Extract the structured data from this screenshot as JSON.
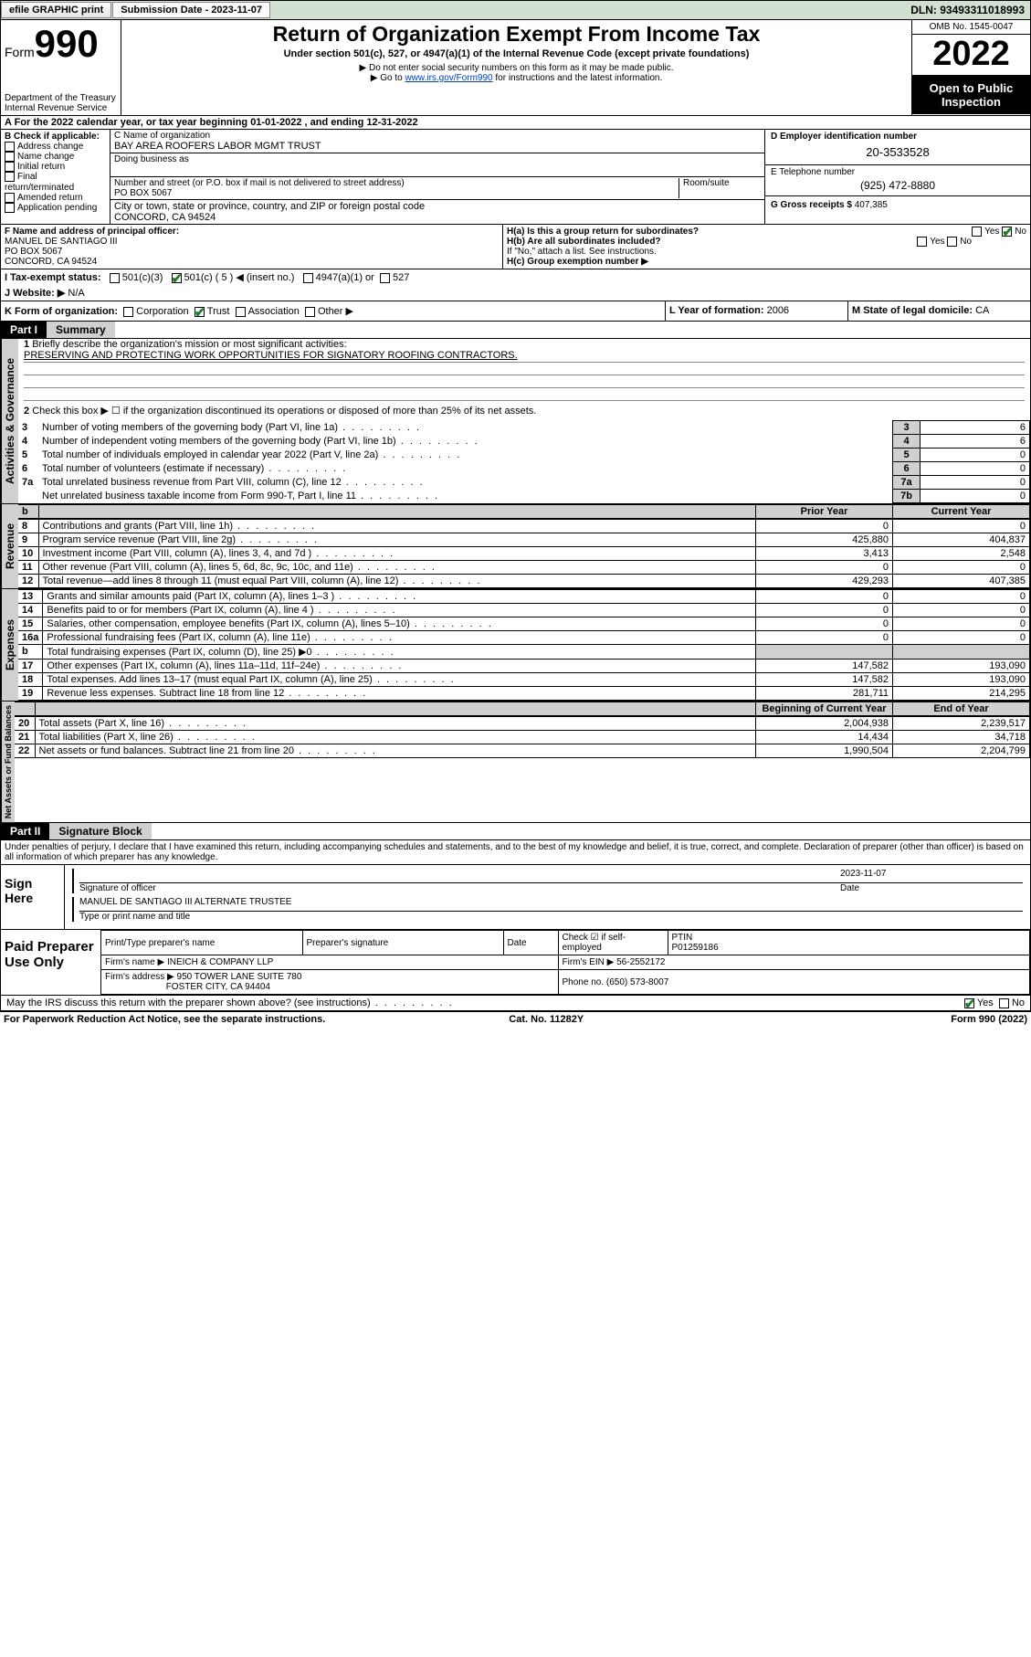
{
  "topbar": {
    "efile": "efile GRAPHIC print",
    "subdate_label": "Submission Date - 2023-11-07",
    "dln": "DLN: 93493311018993"
  },
  "header": {
    "form_word": "Form",
    "form_num": "990",
    "dept": "Department of the Treasury",
    "irs": "Internal Revenue Service",
    "title": "Return of Organization Exempt From Income Tax",
    "sub1": "Under section 501(c), 527, or 4947(a)(1) of the Internal Revenue Code (except private foundations)",
    "sub2": "▶ Do not enter social security numbers on this form as it may be made public.",
    "sub3_pre": "▶ Go to ",
    "sub3_link": "www.irs.gov/Form990",
    "sub3_post": " for instructions and the latest information.",
    "omb": "OMB No. 1545-0047",
    "year": "2022",
    "open": "Open to Public Inspection"
  },
  "lineA": "A For the 2022 calendar year, or tax year beginning 01-01-2022   , and ending 12-31-2022",
  "B": {
    "label": "B Check if applicable:",
    "opts": [
      "Address change",
      "Name change",
      "Initial return",
      "Final return/terminated",
      "Amended return",
      "Application pending"
    ]
  },
  "C": {
    "name_label": "C Name of organization",
    "name": "BAY AREA ROOFERS LABOR MGMT TRUST",
    "dba": "Doing business as",
    "street_label": "Number and street (or P.O. box if mail is not delivered to street address)",
    "room": "Room/suite",
    "street": "PO BOX 5067",
    "city_label": "City or town, state or province, country, and ZIP or foreign postal code",
    "city": "CONCORD, CA  94524"
  },
  "D": {
    "label": "D Employer identification number",
    "val": "20-3533528"
  },
  "E": {
    "label": "E Telephone number",
    "val": "(925) 472-8880"
  },
  "G": {
    "label": "G Gross receipts $",
    "val": "407,385"
  },
  "F": {
    "label": "F Name and address of principal officer:",
    "name": "MANUEL DE SANTIAGO III",
    "street": "PO BOX 5067",
    "city": "CONCORD, CA  94524"
  },
  "H": {
    "a": "H(a)  Is this a group return for subordinates?",
    "b": "H(b)  Are all subordinates included?",
    "b_note": "If \"No,\" attach a list. See instructions.",
    "c": "H(c)  Group exemption number ▶",
    "yes": "Yes",
    "no": "No"
  },
  "I": {
    "label": "I   Tax-exempt status:",
    "o1": "501(c)(3)",
    "o2": "501(c) ( 5 ) ◀ (insert no.)",
    "o3": "4947(a)(1) or",
    "o4": "527"
  },
  "J": {
    "label": "J   Website: ▶",
    "val": "N/A"
  },
  "K": {
    "label": "K Form of organization:",
    "opts": [
      "Corporation",
      "Trust",
      "Association",
      "Other ▶"
    ]
  },
  "L": {
    "label": "L Year of formation:",
    "val": "2006"
  },
  "M": {
    "label": "M State of legal domicile:",
    "val": "CA"
  },
  "part1": {
    "num": "Part I",
    "title": "Summary"
  },
  "summary": {
    "q1": "Briefly describe the organization's mission or most significant activities:",
    "mission": "PRESERVING AND PROTECTING WORK OPPORTUNITIES FOR SIGNATORY ROOFING CONTRACTORS.",
    "q2": "Check this box ▶ ☐ if the organization discontinued its operations or disposed of more than 25% of its net assets.",
    "rows_top": [
      {
        "n": "3",
        "t": "Number of voting members of the governing body (Part VI, line 1a)",
        "box": "3",
        "v": "6"
      },
      {
        "n": "4",
        "t": "Number of independent voting members of the governing body (Part VI, line 1b)",
        "box": "4",
        "v": "6"
      },
      {
        "n": "5",
        "t": "Total number of individuals employed in calendar year 2022 (Part V, line 2a)",
        "box": "5",
        "v": "0"
      },
      {
        "n": "6",
        "t": "Total number of volunteers (estimate if necessary)",
        "box": "6",
        "v": "0"
      },
      {
        "n": "7a",
        "t": "Total unrelated business revenue from Part VIII, column (C), line 12",
        "box": "7a",
        "v": "0"
      },
      {
        "n": "",
        "t": "Net unrelated business taxable income from Form 990-T, Part I, line 11",
        "box": "7b",
        "v": "0"
      }
    ],
    "col_prior": "Prior Year",
    "col_curr": "Current Year",
    "revenue": [
      {
        "n": "8",
        "t": "Contributions and grants (Part VIII, line 1h)",
        "p": "0",
        "c": "0"
      },
      {
        "n": "9",
        "t": "Program service revenue (Part VIII, line 2g)",
        "p": "425,880",
        "c": "404,837"
      },
      {
        "n": "10",
        "t": "Investment income (Part VIII, column (A), lines 3, 4, and 7d )",
        "p": "3,413",
        "c": "2,548"
      },
      {
        "n": "11",
        "t": "Other revenue (Part VIII, column (A), lines 5, 6d, 8c, 9c, 10c, and 11e)",
        "p": "0",
        "c": "0"
      },
      {
        "n": "12",
        "t": "Total revenue—add lines 8 through 11 (must equal Part VIII, column (A), line 12)",
        "p": "429,293",
        "c": "407,385"
      }
    ],
    "expenses": [
      {
        "n": "13",
        "t": "Grants and similar amounts paid (Part IX, column (A), lines 1–3 )",
        "p": "0",
        "c": "0"
      },
      {
        "n": "14",
        "t": "Benefits paid to or for members (Part IX, column (A), line 4 )",
        "p": "0",
        "c": "0"
      },
      {
        "n": "15",
        "t": "Salaries, other compensation, employee benefits (Part IX, column (A), lines 5–10)",
        "p": "0",
        "c": "0"
      },
      {
        "n": "16a",
        "t": "Professional fundraising fees (Part IX, column (A), line 11e)",
        "p": "0",
        "c": "0"
      },
      {
        "n": "b",
        "t": "Total fundraising expenses (Part IX, column (D), line 25) ▶0",
        "p": "",
        "c": ""
      },
      {
        "n": "17",
        "t": "Other expenses (Part IX, column (A), lines 11a–11d, 11f–24e)",
        "p": "147,582",
        "c": "193,090"
      },
      {
        "n": "18",
        "t": "Total expenses. Add lines 13–17 (must equal Part IX, column (A), line 25)",
        "p": "147,582",
        "c": "193,090"
      },
      {
        "n": "19",
        "t": "Revenue less expenses. Subtract line 18 from line 12",
        "p": "281,711",
        "c": "214,295"
      }
    ],
    "col_boy": "Beginning of Current Year",
    "col_eoy": "End of Year",
    "net": [
      {
        "n": "20",
        "t": "Total assets (Part X, line 16)",
        "p": "2,004,938",
        "c": "2,239,517"
      },
      {
        "n": "21",
        "t": "Total liabilities (Part X, line 26)",
        "p": "14,434",
        "c": "34,718"
      },
      {
        "n": "22",
        "t": "Net assets or fund balances. Subtract line 21 from line 20",
        "p": "1,990,504",
        "c": "2,204,799"
      }
    ]
  },
  "tabs": {
    "gov": "Activities & Governance",
    "rev": "Revenue",
    "exp": "Expenses",
    "net": "Net Assets or Fund Balances"
  },
  "part2": {
    "num": "Part II",
    "title": "Signature Block"
  },
  "sig": {
    "decl": "Under penalties of perjury, I declare that I have examined this return, including accompanying schedules and statements, and to the best of my knowledge and belief, it is true, correct, and complete. Declaration of preparer (other than officer) is based on all information of which preparer has any knowledge.",
    "sign_here": "Sign Here",
    "sig_officer": "Signature of officer",
    "date": "Date",
    "sig_date": "2023-11-07",
    "name_title": "MANUEL DE SANTIAGO III  ALTERNATE TRUSTEE",
    "type_name": "Type or print name and title",
    "paid": "Paid Preparer Use Only",
    "prep_name": "Print/Type preparer's name",
    "prep_sig": "Preparer's signature",
    "prep_date": "Date",
    "check_self": "Check ☑ if self-employed",
    "ptin_l": "PTIN",
    "ptin": "P01259186",
    "firm_name_l": "Firm's name   ▶",
    "firm_name": "INEICH & COMPANY LLP",
    "firm_ein_l": "Firm's EIN ▶",
    "firm_ein": "56-2552172",
    "firm_addr_l": "Firm's address ▶",
    "firm_addr1": "950 TOWER LANE SUITE 780",
    "firm_addr2": "FOSTER CITY, CA  94404",
    "phone_l": "Phone no.",
    "phone": "(650) 573-8007",
    "may": "May the IRS discuss this return with the preparer shown above? (see instructions)"
  },
  "footer": {
    "l": "For Paperwork Reduction Act Notice, see the separate instructions.",
    "m": "Cat. No. 11282Y",
    "r": "Form 990 (2022)"
  }
}
